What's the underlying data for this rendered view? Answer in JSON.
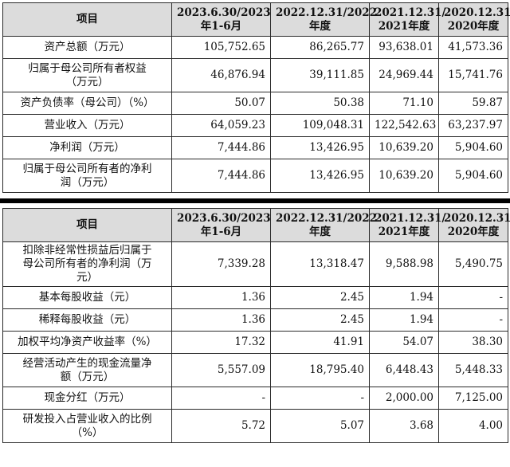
{
  "table1": {
    "headers": [
      "项目",
      "2023.6.30/2023\n年1-6月",
      "2022.12.31/2022\n年度",
      "2021.12.31/\n2021年度",
      "2020.12.31/\n2020年度"
    ],
    "rows": [
      {
        "label": "资产总额（万元）",
        "values": [
          "105,752.65",
          "86,265.77",
          "93,638.01",
          "41,573.36"
        ]
      },
      {
        "label": "归属于母公司所有者权益\n（万元）",
        "values": [
          "46,876.94",
          "39,111.85",
          "24,969.44",
          "15,741.76"
        ]
      },
      {
        "label": "资产负债率（母公司）（%）",
        "values": [
          "50.07",
          "50.38",
          "71.10",
          "59.87"
        ]
      },
      {
        "label": "营业收入（万元）",
        "values": [
          "64,059.23",
          "109,048.31",
          "122,542.63",
          "63,237.97"
        ]
      },
      {
        "label": "净利润（万元）",
        "values": [
          "7,444.86",
          "13,426.95",
          "10,639.20",
          "5,904.60"
        ]
      },
      {
        "label": "归属于母公司所有者的净利\n润（万元）",
        "values": [
          "7,444.86",
          "13,426.95",
          "10,639.20",
          "5,904.60"
        ]
      }
    ]
  },
  "table2": {
    "headers": [
      "项目",
      "2023.6.30/2023\n年1-6月",
      "2022.12.31/2022\n年度",
      "2021.12.31/\n2021年度",
      "2020.12.31/\n2020年度"
    ],
    "rows": [
      {
        "label": "扣除非经常性损益后归属于\n母公司所有者的净利润（万\n元）",
        "values": [
          "7,339.28",
          "13,318.47",
          "9,588.98",
          "5,490.75"
        ]
      },
      {
        "label": "基本每股收益（元）",
        "values": [
          "1.36",
          "2.45",
          "1.94",
          "-"
        ]
      },
      {
        "label": "稀释每股收益（元）",
        "values": [
          "1.36",
          "2.45",
          "1.94",
          "-"
        ]
      },
      {
        "label": "加权平均净资产收益率（%）",
        "values": [
          "17.32",
          "41.91",
          "54.07",
          "38.30"
        ]
      },
      {
        "label": "经营活动产生的现金流量净\n额（万元）",
        "values": [
          "5,557.09",
          "18,795.40",
          "6,448.43",
          "5,448.33"
        ]
      },
      {
        "label": "现金分红（万元）",
        "values": [
          "-",
          "-",
          "2,000.00",
          "7,125.00"
        ]
      },
      {
        "label": "研发投入占营业收入的比例\n（%）",
        "values": [
          "5.72",
          "5.07",
          "3.68",
          "4.00"
        ]
      }
    ]
  }
}
